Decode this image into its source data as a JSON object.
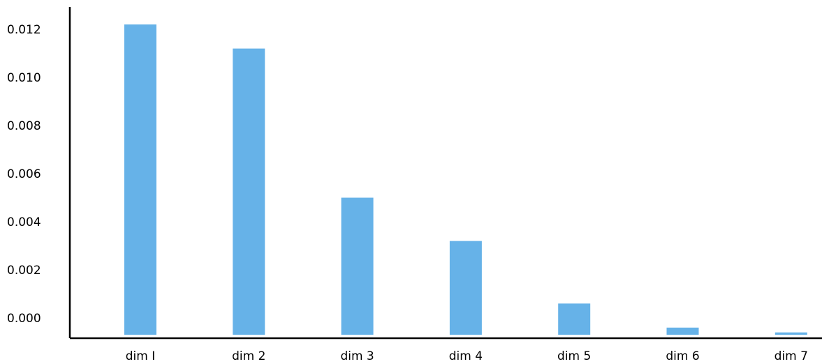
{
  "chart_data": {
    "type": "bar",
    "title": "",
    "xlabel": "",
    "ylabel": "",
    "categories": [
      "dim I",
      "dim 2",
      "dim 3",
      "dim 4",
      "dim 5",
      "dim 6",
      "dim 7"
    ],
    "values": [
      0.0122,
      0.0112,
      0.005,
      0.0032,
      0.0006,
      -0.0004,
      -0.0006
    ],
    "yticks": [
      "0.000",
      "0.002",
      "0.004",
      "0.006",
      "0.008",
      "0.010",
      "0.012"
    ],
    "ytick_values": [
      0.0,
      0.002,
      0.004,
      0.006,
      0.008,
      0.01,
      0.012
    ],
    "ylim": [
      -0.0007,
      0.0126
    ],
    "bar_color": "#66b2e8",
    "grid": false,
    "legend": "none"
  }
}
